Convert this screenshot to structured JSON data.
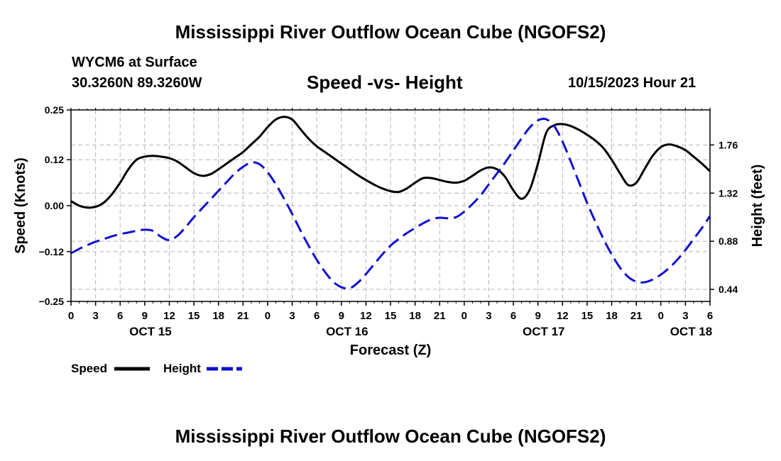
{
  "header": {
    "title": "Mississippi River Outflow Ocean Cube (NGOFS2)",
    "station": "WYCM6 at Surface",
    "coords": "30.3260N  89.3260W",
    "subtitle": "Speed -vs- Height",
    "datetime": "10/15/2023 Hour 21"
  },
  "footer": {
    "title": "Mississippi River Outflow Ocean Cube (NGOFS2)"
  },
  "legend": {
    "speed_label": "Speed",
    "height_label": "Height"
  },
  "colors": {
    "speed": "#000000",
    "height": "#1010d0",
    "grid": "#b4b4b4"
  },
  "chart_data": {
    "type": "line",
    "title": "Speed -vs- Height",
    "xlabel": "Forecast (Z)",
    "ylabel": "Speed (Knots)",
    "y2label": "Height (feet)",
    "xlim": [
      0,
      78
    ],
    "ylim": [
      -0.25,
      0.25
    ],
    "y2lim": [
      0.33,
      2.08
    ],
    "x_ticks": [
      0,
      3,
      6,
      9,
      12,
      15,
      18,
      21,
      24,
      27,
      30,
      33,
      36,
      39,
      42,
      45,
      48,
      51,
      54,
      57,
      60,
      63,
      66,
      69,
      72,
      75,
      78
    ],
    "x_tick_labels": [
      "0",
      "3",
      "6",
      "9",
      "12",
      "15",
      "18",
      "21",
      "0",
      "3",
      "6",
      "9",
      "12",
      "15",
      "18",
      "21",
      "0",
      "3",
      "6",
      "9",
      "12",
      "15",
      "18",
      "21",
      "0",
      "3",
      "6"
    ],
    "date_labels": [
      {
        "x": 9.7,
        "label": "OCT 15"
      },
      {
        "x": 33.7,
        "label": "OCT 16"
      },
      {
        "x": 57.7,
        "label": "OCT 17"
      },
      {
        "x": 75.7,
        "label": "OCT 18"
      }
    ],
    "y_ticks": [
      0.25,
      0.12,
      0.0,
      -0.12,
      -0.25
    ],
    "y_tick_labels": [
      "0.25",
      "0.12",
      "0.00",
      "−0.12",
      "−0.25"
    ],
    "y2_ticks": [
      1.76,
      1.32,
      0.88,
      0.44
    ],
    "y2_tick_labels": [
      "1.76",
      "1.32",
      "0.88",
      "0.44"
    ],
    "series": [
      {
        "name": "Speed",
        "axis": "left",
        "style": "solid",
        "x": [
          0,
          1,
          2,
          3,
          4,
          5,
          6,
          7,
          8,
          9,
          10,
          11,
          12,
          13,
          14,
          15,
          16,
          17,
          18,
          19,
          20,
          21,
          22,
          23,
          24,
          25,
          26,
          27,
          28,
          29,
          30,
          31,
          32,
          33,
          34,
          35,
          36,
          37,
          38,
          39,
          40,
          41,
          42,
          43,
          44,
          45,
          46,
          47,
          48,
          49,
          50,
          51,
          52,
          53,
          54,
          55,
          56,
          57,
          58,
          59,
          60,
          61,
          62,
          63,
          64,
          65,
          66,
          67,
          68,
          69,
          70,
          71,
          72,
          73,
          74,
          75,
          76,
          77,
          78
        ],
        "values": [
          0.012,
          0.0,
          -0.005,
          -0.003,
          0.008,
          0.03,
          0.06,
          0.095,
          0.12,
          0.128,
          0.13,
          0.128,
          0.124,
          0.115,
          0.1,
          0.085,
          0.078,
          0.082,
          0.095,
          0.11,
          0.125,
          0.14,
          0.16,
          0.18,
          0.205,
          0.225,
          0.232,
          0.225,
          0.2,
          0.175,
          0.155,
          0.14,
          0.125,
          0.11,
          0.095,
          0.08,
          0.067,
          0.055,
          0.045,
          0.038,
          0.036,
          0.045,
          0.06,
          0.072,
          0.072,
          0.067,
          0.062,
          0.06,
          0.065,
          0.078,
          0.092,
          0.1,
          0.095,
          0.075,
          0.04,
          0.018,
          0.042,
          0.11,
          0.19,
          0.21,
          0.213,
          0.208,
          0.198,
          0.185,
          0.17,
          0.15,
          0.12,
          0.085,
          0.054,
          0.06,
          0.095,
          0.13,
          0.153,
          0.16,
          0.155,
          0.145,
          0.128,
          0.11,
          0.09
        ]
      },
      {
        "name": "Height",
        "axis": "right",
        "style": "dashed",
        "x": [
          0,
          1,
          2,
          3,
          4,
          5,
          6,
          7,
          8,
          9,
          10,
          11,
          12,
          13,
          14,
          15,
          16,
          17,
          18,
          19,
          20,
          21,
          22,
          23,
          24,
          25,
          26,
          27,
          28,
          29,
          30,
          31,
          32,
          33,
          34,
          35,
          36,
          37,
          38,
          39,
          40,
          41,
          42,
          43,
          44,
          45,
          46,
          47,
          48,
          49,
          50,
          51,
          52,
          53,
          54,
          55,
          56,
          57,
          58,
          59,
          60,
          61,
          62,
          63,
          64,
          65,
          66,
          67,
          68,
          69,
          70,
          71,
          72,
          73,
          74,
          75,
          76,
          77,
          78
        ],
        "values": [
          0.77,
          0.81,
          0.845,
          0.875,
          0.9,
          0.925,
          0.945,
          0.96,
          0.975,
          0.985,
          0.975,
          0.92,
          0.89,
          0.93,
          1.01,
          1.1,
          1.18,
          1.26,
          1.34,
          1.42,
          1.5,
          1.56,
          1.6,
          1.585,
          1.51,
          1.4,
          1.27,
          1.13,
          0.98,
          0.84,
          0.71,
          0.6,
          0.51,
          0.46,
          0.45,
          0.5,
          0.58,
          0.67,
          0.76,
          0.84,
          0.9,
          0.955,
          1.0,
          1.045,
          1.08,
          1.095,
          1.09,
          1.1,
          1.15,
          1.22,
          1.3,
          1.4,
          1.5,
          1.6,
          1.71,
          1.82,
          1.92,
          1.985,
          1.995,
          1.93,
          1.79,
          1.61,
          1.42,
          1.23,
          1.06,
          0.9,
          0.76,
          0.64,
          0.555,
          0.51,
          0.505,
          0.53,
          0.575,
          0.635,
          0.71,
          0.8,
          0.9,
          1.0,
          1.11
        ]
      }
    ]
  }
}
